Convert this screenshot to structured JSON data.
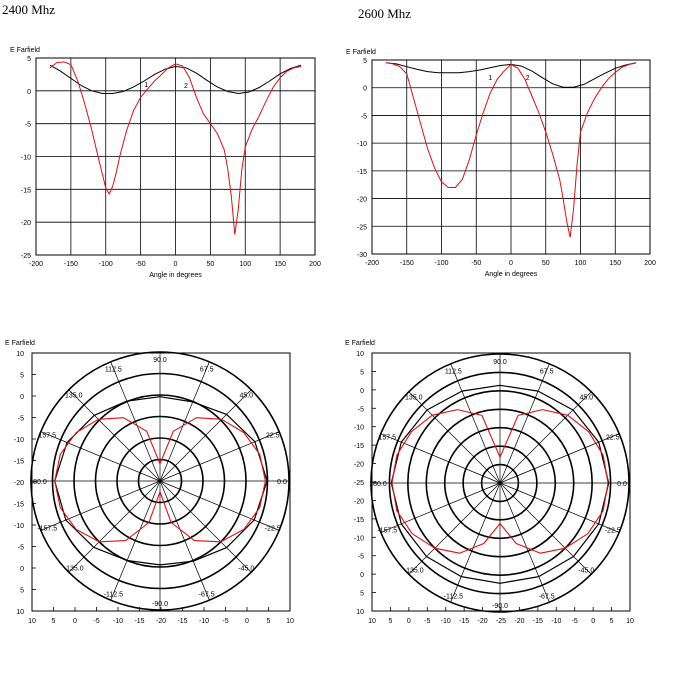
{
  "headings": {
    "left": "2400 Mhz",
    "right": "2600 Mhz"
  },
  "colors": {
    "measured": "#e01010",
    "reference": "#000000",
    "grid": "#000000"
  },
  "chart_data": [
    {
      "type": "line",
      "panel": "2400 Mhz cartesian",
      "title": "",
      "ylabel": "E Farfield",
      "xlabel": "Angle in degrees",
      "xlim": [
        -200,
        200
      ],
      "ylim": [
        -25,
        5
      ],
      "xticks": [
        -200,
        -150,
        -100,
        -50,
        0,
        50,
        100,
        150,
        200
      ],
      "xtick_labels": [
        "-200",
        "-150",
        "-100",
        "-50",
        "0",
        "50",
        "100",
        "150",
        "200"
      ],
      "yticks": [
        5,
        0,
        -5,
        -10,
        -15,
        -20,
        -25
      ],
      "ytick_labels": [
        "5",
        "0",
        "-5",
        "-10",
        "-15",
        "-20",
        "-25"
      ],
      "grid": true,
      "annotations": [
        {
          "text": "1",
          "x": -42,
          "y": 0.6
        },
        {
          "text": "2",
          "x": 15,
          "y": 0.4
        }
      ],
      "series": [
        {
          "color": "#000000",
          "x": [
            -180,
            -165,
            -150,
            -135,
            -120,
            -105,
            -90,
            -75,
            -60,
            -45,
            -30,
            -15,
            0,
            15,
            30,
            45,
            60,
            75,
            90,
            105,
            120,
            135,
            150,
            165,
            180
          ],
          "y": [
            3.9,
            3.0,
            1.9,
            0.8,
            0.0,
            -0.4,
            -0.4,
            -0.1,
            0.6,
            1.5,
            2.5,
            3.3,
            3.7,
            3.5,
            2.7,
            1.6,
            0.6,
            -0.1,
            -0.4,
            -0.2,
            0.5,
            1.5,
            2.6,
            3.4,
            3.9
          ]
        },
        {
          "color": "#e01010",
          "x": [
            -180,
            -170,
            -160,
            -150,
            -140,
            -130,
            -120,
            -110,
            -100,
            -95,
            -90,
            -85,
            -80,
            -70,
            -60,
            -50,
            -40,
            -30,
            -20,
            -10,
            0,
            10,
            20,
            30,
            40,
            50,
            60,
            70,
            75,
            80,
            85,
            90,
            95,
            100,
            110,
            120,
            130,
            140,
            150,
            160,
            170,
            180
          ],
          "y": [
            3.5,
            4.3,
            4.4,
            4.0,
            1.5,
            -2.0,
            -6.0,
            -10.5,
            -14.8,
            -15.7,
            -14.5,
            -12.5,
            -10.0,
            -6.0,
            -3.0,
            -1.0,
            0.3,
            1.5,
            2.5,
            3.5,
            4.1,
            3.8,
            2.0,
            -1.0,
            -3.5,
            -5.0,
            -6.5,
            -9.0,
            -12.0,
            -16.0,
            -21.9,
            -18.0,
            -12.0,
            -8.5,
            -5.8,
            -3.8,
            -1.5,
            0.5,
            2.0,
            3.0,
            3.5,
            3.7
          ]
        }
      ]
    },
    {
      "type": "line",
      "panel": "2600 Mhz cartesian",
      "title": "",
      "ylabel": "E Farfield",
      "xlabel": "Angle in degrees",
      "xlim": [
        -200,
        200
      ],
      "ylim": [
        -30,
        5
      ],
      "xticks": [
        -200,
        -150,
        -100,
        -50,
        0,
        50,
        100,
        150,
        200
      ],
      "xtick_labels": [
        "-200",
        "-150",
        "-100",
        "-50",
        "0",
        "50",
        "100",
        "150",
        "200"
      ],
      "yticks": [
        5,
        0,
        -5,
        -10,
        -15,
        -20,
        -25,
        -30
      ],
      "ytick_labels": [
        "5",
        "0",
        "-5",
        "-10",
        "-15",
        "-20",
        "-25",
        "-30"
      ],
      "grid": true,
      "annotations": [
        {
          "text": "1",
          "x": -30,
          "y": 1.4
        },
        {
          "text": "2",
          "x": 24,
          "y": 1.4
        }
      ],
      "series": [
        {
          "color": "#000000",
          "x": [
            -180,
            -165,
            -150,
            -135,
            -120,
            -105,
            -90,
            -75,
            -60,
            -45,
            -30,
            -15,
            0,
            15,
            30,
            45,
            60,
            75,
            90,
            105,
            120,
            135,
            150,
            165,
            180
          ],
          "y": [
            4.5,
            4.3,
            3.8,
            3.3,
            2.9,
            2.7,
            2.7,
            2.7,
            2.9,
            3.2,
            3.6,
            4.0,
            4.2,
            3.9,
            3.0,
            1.8,
            0.7,
            0.1,
            0.1,
            0.6,
            1.6,
            2.6,
            3.5,
            4.1,
            4.5
          ]
        },
        {
          "color": "#e01010",
          "x": [
            -180,
            -170,
            -160,
            -150,
            -140,
            -130,
            -120,
            -110,
            -100,
            -90,
            -80,
            -70,
            -60,
            -50,
            -40,
            -30,
            -20,
            -10,
            0,
            10,
            20,
            30,
            40,
            50,
            60,
            70,
            75,
            80,
            85,
            90,
            95,
            100,
            110,
            120,
            130,
            140,
            150,
            160,
            170,
            180
          ],
          "y": [
            4.5,
            4.3,
            3.8,
            2.5,
            -2.0,
            -6.5,
            -11.0,
            -14.5,
            -17.0,
            -18.0,
            -18.0,
            -16.5,
            -13.0,
            -8.5,
            -4.5,
            -1.0,
            1.5,
            3.0,
            4.2,
            3.5,
            1.5,
            -1.5,
            -4.5,
            -8.0,
            -12.0,
            -16.5,
            -20.0,
            -24.0,
            -27.0,
            -22.0,
            -14.0,
            -8.0,
            -4.5,
            -2.0,
            0.0,
            1.6,
            2.8,
            3.7,
            4.2,
            4.5
          ]
        }
      ]
    },
    {
      "type": "polar",
      "panel": "2400 Mhz polar",
      "title": "",
      "ylabel": "E Farfield",
      "angle_labels": [
        "0.0",
        "22.5",
        "45.0",
        "67.5",
        "90.0",
        "112.5",
        "135.0",
        "157.5",
        "180.0",
        "-157.5",
        "-135.0",
        "-112.5",
        "-90.0",
        "-67.5",
        "-45.0",
        "-22.5"
      ],
      "ytick_labels": [
        "10",
        "5",
        "0",
        "-5",
        "-10",
        "-15",
        "-20",
        "-15",
        "-10",
        "-5",
        "0",
        "5",
        "10"
      ],
      "xtick_labels": [
        "10",
        "5",
        "0",
        "-5",
        "-10",
        "-15",
        "-20",
        "-15",
        "-10",
        "-5",
        "0",
        "5",
        "10"
      ],
      "center_value": -20,
      "outer_value": 10,
      "ring_values": [
        -15,
        -10,
        -5,
        0,
        5,
        10
      ],
      "grid": true,
      "series": [
        {
          "color": "#000000",
          "angles": [
            0,
            22.5,
            45,
            67.5,
            90,
            112.5,
            135,
            157.5,
            180,
            -157.5,
            -135,
            -112.5,
            -90,
            -67.5,
            -45,
            -22.5
          ],
          "r": [
            4.9,
            3.9,
            1.9,
            -0.1,
            -0.4,
            0.1,
            1.6,
            3.4,
            4.5,
            3.7,
            1.8,
            0.0,
            -0.5,
            0.2,
            1.9,
            3.7
          ]
        },
        {
          "color": "#e01010",
          "angles": [
            0,
            15,
            30,
            45,
            60,
            75,
            90,
            105,
            120,
            135,
            150,
            165,
            180,
            -165,
            -150,
            -135,
            -120,
            -105,
            -90,
            -75,
            -60,
            -45,
            -30,
            -15
          ],
          "r": [
            4.5,
            4.0,
            2.5,
            0.3,
            -3.0,
            -8.0,
            -16.0,
            -8.0,
            -3.0,
            0.3,
            2.5,
            4.0,
            4.5,
            4.0,
            2.5,
            0.0,
            -4.0,
            -10.0,
            -17.5,
            -10.0,
            -4.0,
            0.0,
            2.5,
            4.0
          ]
        }
      ]
    },
    {
      "type": "polar",
      "panel": "2600 Mhz polar",
      "title": "",
      "ylabel": "E Farfield",
      "angle_labels": [
        "0.0",
        "22.5",
        "45.0",
        "67.5",
        "90.0",
        "112.5",
        "135.0",
        "157.5",
        "180.0",
        "-157.5",
        "-135.0",
        "-112.5",
        "-90.0",
        "-67.5",
        "-45.0",
        "-22.5"
      ],
      "ytick_labels": [
        "10",
        "5",
        "0",
        "-5",
        "-10",
        "-15",
        "-20",
        "-25",
        "-20",
        "-15",
        "-10",
        "-5",
        "0",
        "5",
        "10"
      ],
      "xtick_labels": [
        "10",
        "5",
        "0",
        "-5",
        "-10",
        "-15",
        "-20",
        "-25",
        "-20",
        "-15",
        "-10",
        "-5",
        "0",
        "5",
        "10"
      ],
      "center_value": -25,
      "outer_value": 10,
      "ring_values": [
        -20,
        -15,
        -10,
        -5,
        0,
        5,
        10
      ],
      "grid": true,
      "series": [
        {
          "color": "#000000",
          "angles": [
            0,
            22.5,
            45,
            67.5,
            90,
            112.5,
            135,
            157.5,
            180,
            -157.5,
            -135,
            -112.5,
            -90,
            -67.5,
            -45,
            -22.5
          ],
          "r": [
            4.5,
            4.0,
            3.0,
            2.0,
            1.5,
            2.0,
            3.0,
            4.0,
            4.5,
            4.0,
            3.2,
            2.5,
            2.2,
            2.5,
            3.2,
            4.0
          ]
        },
        {
          "color": "#e01010",
          "angles": [
            0,
            15,
            30,
            45,
            60,
            75,
            90,
            105,
            120,
            135,
            150,
            165,
            180,
            -165,
            -150,
            -135,
            -120,
            -105,
            -90,
            -75,
            -60,
            -45,
            -30,
            -15
          ],
          "r": [
            4.3,
            4.0,
            2.8,
            1.0,
            -2.0,
            -6.0,
            -18.0,
            -6.0,
            -2.0,
            1.0,
            2.8,
            4.0,
            4.3,
            4.0,
            2.5,
            0.0,
            -3.0,
            -8.0,
            -14.0,
            -8.0,
            -3.0,
            0.0,
            2.5,
            4.0
          ]
        }
      ]
    }
  ]
}
